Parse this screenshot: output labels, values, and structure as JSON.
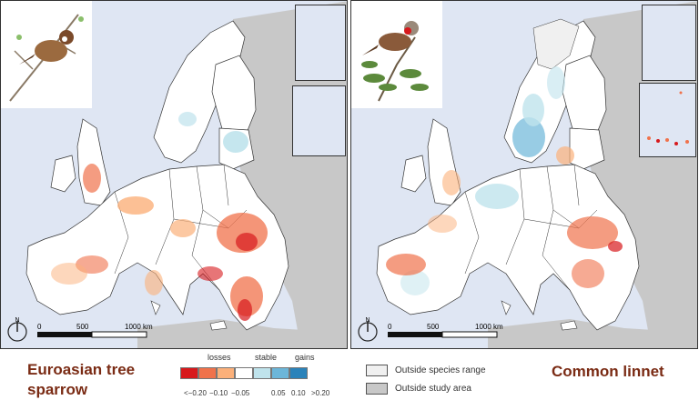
{
  "panels": [
    {
      "species": "Euroasian tree sparrow",
      "species_line1": "Euroasian tree",
      "species_line2": "sparrow",
      "bird_icon": "tree-sparrow-illustration"
    },
    {
      "species": "Common linnet",
      "bird_icon": "common-linnet-illustration"
    }
  ],
  "scale": {
    "zero": "0",
    "mid": "500",
    "end": "1000 km"
  },
  "north_label": "N",
  "legend": {
    "categories": {
      "losses": "losses",
      "stable": "stable",
      "gains": "gains"
    },
    "colors": [
      "#d7191c",
      "#f0724b",
      "#fbb07a",
      "#ffffff",
      "#bfe3ec",
      "#6cb6d9",
      "#2b83ba"
    ],
    "ticks": [
      "<−0.20",
      "−0.10",
      "−0.05",
      "0.05",
      "0.10",
      ">0.20"
    ]
  },
  "range_key": {
    "outside_range": "Outside species range",
    "outside_range_color": "#f0f0f0",
    "outside_study": "Outside study area",
    "outside_study_color": "#c8c8c8"
  },
  "colors": {
    "sea": "#dfe6f3",
    "land_study": "#ffffff",
    "land_outside": "#c8c8c8"
  }
}
